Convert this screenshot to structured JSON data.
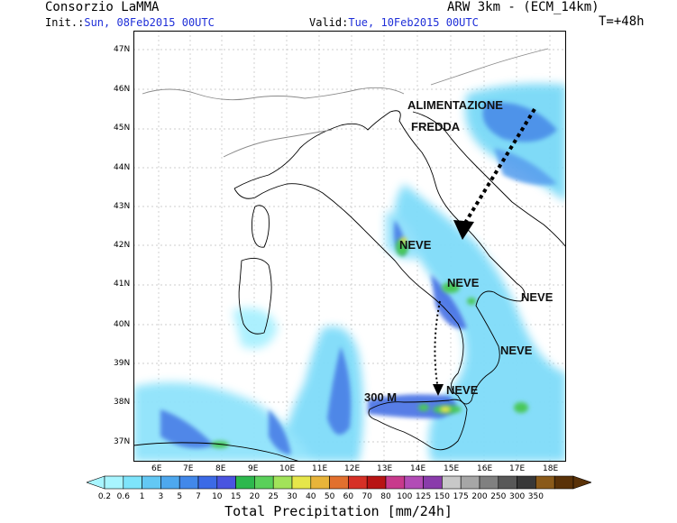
{
  "header": {
    "producer": "Consorzio LaMMA",
    "model": "ARW 3km - (ECM_14km)",
    "init_label": "Init.:",
    "init_value": "Sun, 08Feb2015 00UTC",
    "valid_label": "Valid:",
    "valid_value": "Tue, 10Feb2015 00UTC",
    "step": "T=+48h"
  },
  "map": {
    "lat_ticks": [
      "47N",
      "46N",
      "45N",
      "44N",
      "43N",
      "42N",
      "41N",
      "40N",
      "39N",
      "38N",
      "37N"
    ],
    "lon_ticks": [
      "6E",
      "7E",
      "8E",
      "9E",
      "10E",
      "11E",
      "12E",
      "13E",
      "14E",
      "15E",
      "16E",
      "17E",
      "18E"
    ],
    "annotations": {
      "alimentazione": "ALIMENTAZIONE",
      "fredda": "FREDDA",
      "neve1": "NEVE",
      "neve2": "NEVE",
      "neve3": "NEVE",
      "neve4": "NEVE",
      "neve5": "NEVE",
      "height": "300 M"
    }
  },
  "colorbar": {
    "title": "Total Precipitation [mm/24h]",
    "labels": [
      "0.2",
      "0.6",
      "1",
      "3",
      "5",
      "7",
      "10",
      "15",
      "20",
      "25",
      "30",
      "40",
      "50",
      "60",
      "70",
      "80",
      "100",
      "125",
      "150",
      "175",
      "200",
      "250",
      "300",
      "350"
    ],
    "colors": [
      "#a8f5ff",
      "#7ee4fb",
      "#63c8f4",
      "#4ea8ee",
      "#4288ea",
      "#3c6ae6",
      "#4a54e0",
      "#2db84d",
      "#5ad05a",
      "#a2e35a",
      "#e6e64a",
      "#e8b43a",
      "#e2702e",
      "#d63026",
      "#b81414",
      "#c83a8c",
      "#b24cb6",
      "#8a3cab",
      "#c8c8c8",
      "#a6a6a6",
      "#808080",
      "#585858",
      "#383838",
      "#8a5a1a",
      "#5a3208"
    ]
  }
}
